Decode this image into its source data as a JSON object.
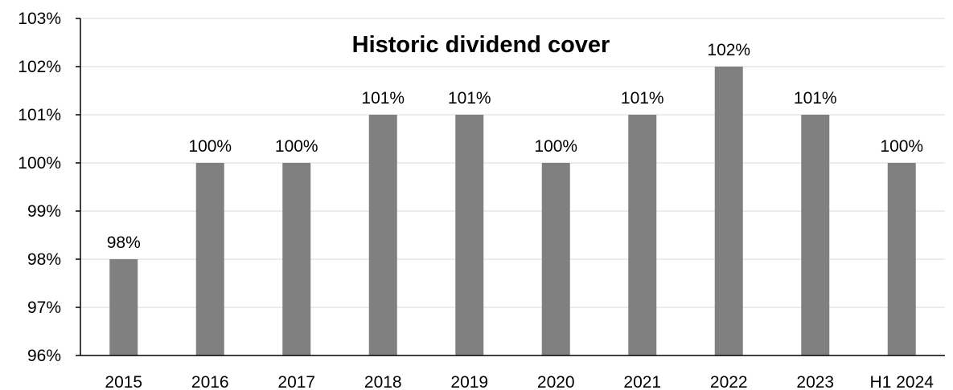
{
  "chart_data": {
    "type": "bar",
    "title": "Historic dividend cover",
    "xlabel": "",
    "ylabel": "",
    "categories": [
      "2015",
      "2016",
      "2017",
      "2018",
      "2019",
      "2020",
      "2021",
      "2022",
      "2023",
      "H1 2024"
    ],
    "values": [
      98,
      100,
      100,
      101,
      101,
      100,
      101,
      102,
      101,
      100
    ],
    "data_labels": [
      "98%",
      "100%",
      "100%",
      "101%",
      "101%",
      "100%",
      "101%",
      "102%",
      "101%",
      "100%"
    ],
    "ylim": [
      96,
      103
    ],
    "yticks": [
      96,
      97,
      98,
      99,
      100,
      101,
      102,
      103
    ],
    "ytick_labels": [
      "96%",
      "97%",
      "98%",
      "99%",
      "100%",
      "101%",
      "102%",
      "103%"
    ],
    "grid": true,
    "legend": "none",
    "bar_color": "#808080",
    "grid_color": "#d9d9d9"
  }
}
